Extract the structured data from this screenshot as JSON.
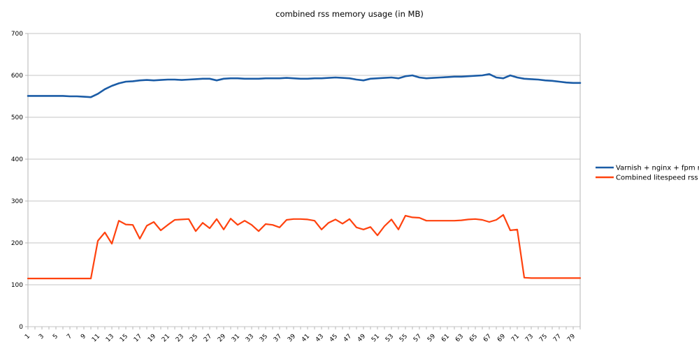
{
  "chart_data": {
    "type": "line",
    "title": "combined rss memory usage (in MB)",
    "xlabel": "",
    "ylabel": "",
    "ylim": [
      0,
      700
    ],
    "y_ticks": [
      0,
      100,
      200,
      300,
      400,
      500,
      600,
      700
    ],
    "x_tick_labels": [
      "1",
      "3",
      "5",
      "7",
      "9",
      "11",
      "13",
      "15",
      "17",
      "19",
      "21",
      "23",
      "25",
      "27",
      "29",
      "31",
      "33",
      "35",
      "37",
      "39",
      "41",
      "43",
      "45",
      "47",
      "49",
      "51",
      "53",
      "55",
      "57",
      "59",
      "61",
      "63",
      "65",
      "67",
      "69",
      "71",
      "73",
      "75",
      "77",
      "79"
    ],
    "points_per_series": 80,
    "grid": "horizontal-only",
    "legend_position": "right",
    "colors": {
      "grid": "#c6c6c6",
      "axis": "#b5b5b5",
      "text": "#000000",
      "background": "#ffffff"
    },
    "series": [
      {
        "name": "Varnish + nginx + fpm rss",
        "color": "#1b5ca6",
        "values": [
          551,
          551,
          551,
          551,
          551,
          551,
          550,
          550,
          549,
          548,
          556,
          567,
          575,
          581,
          585,
          586,
          588,
          589,
          588,
          589,
          590,
          590,
          589,
          590,
          591,
          592,
          592,
          588,
          592,
          593,
          593,
          592,
          592,
          592,
          593,
          593,
          593,
          594,
          593,
          592,
          592,
          593,
          593,
          594,
          595,
          594,
          593,
          590,
          588,
          592,
          593,
          594,
          595,
          593,
          598,
          600,
          595,
          593,
          594,
          595,
          596,
          597,
          597,
          598,
          599,
          600,
          603,
          595,
          593,
          600,
          595,
          592,
          591,
          590,
          588,
          587,
          585,
          583,
          582,
          582
        ]
      },
      {
        "name": "Combined litespeed rss",
        "color": "#ff420e",
        "values": [
          115,
          115,
          115,
          115,
          115,
          115,
          115,
          115,
          115,
          115,
          205,
          225,
          198,
          253,
          244,
          243,
          210,
          241,
          250,
          230,
          243,
          255,
          256,
          257,
          228,
          248,
          235,
          257,
          232,
          258,
          243,
          253,
          243,
          228,
          245,
          243,
          237,
          255,
          257,
          257,
          256,
          253,
          232,
          248,
          256,
          246,
          257,
          237,
          232,
          238,
          218,
          240,
          256,
          232,
          265,
          261,
          260,
          253,
          253,
          253,
          253,
          253,
          254,
          256,
          257,
          255,
          250,
          255,
          267,
          230,
          232,
          117,
          116,
          116,
          116,
          116,
          116,
          116,
          116,
          116
        ]
      }
    ]
  }
}
